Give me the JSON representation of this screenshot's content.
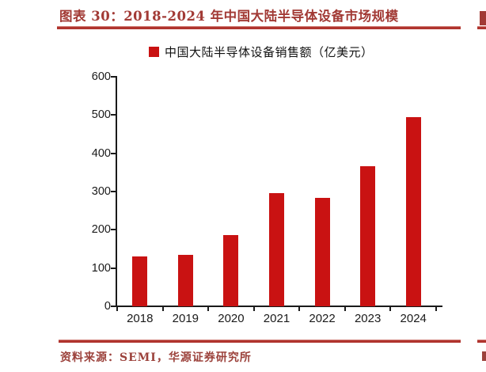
{
  "figure": {
    "title": "图表 30：2018-2024 年中国大陆半导体设备市场规模",
    "source": "资料来源：SEMI，华源证券研究所"
  },
  "colors": {
    "bar": "#c91212",
    "title_red": "#a23a35",
    "rule_red": "#b0342e",
    "source_red": "#9c423c",
    "axis": "#1a1a1a"
  },
  "chart_data": {
    "type": "bar",
    "title": "图表 30：2018-2024 年中国大陆半导体设备市场规模",
    "legend": "中国大陆半导体设备销售额（亿美元）",
    "legend_position": "top-center",
    "categories": [
      "2018",
      "2019",
      "2020",
      "2021",
      "2022",
      "2023",
      "2024"
    ],
    "values": [
      131,
      135,
      187,
      296,
      283,
      366,
      495
    ],
    "xlabel": "",
    "ylabel": "",
    "ylim": [
      0,
      600
    ],
    "yticks": [
      0,
      100,
      200,
      300,
      400,
      500,
      600
    ],
    "grid": false,
    "source": "资料来源：SEMI，华源证券研究所"
  }
}
